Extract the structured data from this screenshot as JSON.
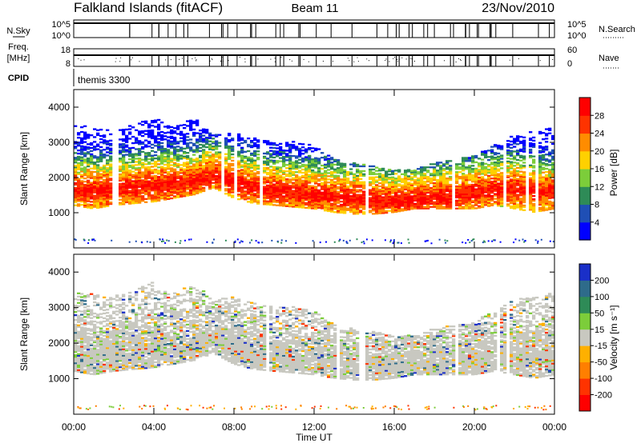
{
  "header": {
    "station": "Falkland Islands (fitACF)",
    "beam": "Beam 11",
    "date": "23/Nov/2010"
  },
  "chart_data": [
    {
      "type": "line",
      "panel": "noise",
      "left_label": "N.Sky",
      "right_label": "N.Search",
      "left_ticks": [
        "10^5",
        "10^0"
      ],
      "right_ticks": [
        "10^5",
        "10^0"
      ]
    },
    {
      "type": "line",
      "panel": "frequency",
      "left_label_lines": [
        "Freq.",
        "[MHz]"
      ],
      "right_label": "Nave",
      "left_ticks": [
        "18",
        "8"
      ],
      "right_ticks": [
        "60",
        "0"
      ]
    },
    {
      "type": "table",
      "panel": "cpid",
      "label": "CPID",
      "program": "themis 3300"
    },
    {
      "type": "heatmap",
      "panel": "power",
      "ylabel": "Slant Range [km]",
      "ylim": [
        0,
        4500
      ],
      "yticks": [
        1000,
        2000,
        3000,
        4000
      ],
      "colorbar_label": "Power [dB]",
      "colorbar_ticks": [
        "28",
        "24",
        "20",
        "16",
        "12",
        "8",
        "4"
      ],
      "colors": [
        "#0000ff",
        "#1f4fb5",
        "#2e8b57",
        "#7ccd3a",
        "#ffd000",
        "#ff8c00",
        "#ff3300",
        "#ff0000"
      ],
      "xlim": [
        0,
        24
      ],
      "edges_km": [
        [
          0,
          1200,
          3500
        ],
        [
          1,
          1100,
          3400
        ],
        [
          2,
          1200,
          3300
        ],
        [
          3,
          1250,
          3500
        ],
        [
          4,
          1300,
          3700
        ],
        [
          5,
          1400,
          3400
        ],
        [
          6,
          1500,
          3700
        ],
        [
          7,
          1700,
          3200
        ],
        [
          8,
          1400,
          3300
        ],
        [
          9,
          1250,
          3100
        ],
        [
          10,
          1200,
          3000
        ],
        [
          11,
          1150,
          3000
        ],
        [
          12,
          1100,
          2900
        ],
        [
          13,
          1000,
          2500
        ],
        [
          14,
          950,
          2400
        ],
        [
          15,
          950,
          2300
        ],
        [
          16,
          1000,
          2200
        ],
        [
          17,
          1100,
          2200
        ],
        [
          18,
          1100,
          2400
        ],
        [
          19,
          1100,
          2500
        ],
        [
          20,
          1100,
          2600
        ],
        [
          21,
          1200,
          2900
        ],
        [
          22,
          1100,
          3200
        ],
        [
          23,
          1000,
          3300
        ],
        [
          24,
          1100,
          3400
        ]
      ],
      "peak_km": [
        [
          0,
          1600
        ],
        [
          1,
          1620
        ],
        [
          2,
          1650
        ],
        [
          3,
          1700
        ],
        [
          4,
          1750
        ],
        [
          5,
          1800
        ],
        [
          6,
          1850
        ],
        [
          7,
          2050
        ],
        [
          8,
          1850
        ],
        [
          9,
          1700
        ],
        [
          10,
          1600
        ],
        [
          11,
          1550
        ],
        [
          12,
          1500
        ],
        [
          13,
          1450
        ],
        [
          14,
          1400
        ],
        [
          15,
          1350
        ],
        [
          16,
          1300
        ],
        [
          17,
          1350
        ],
        [
          18,
          1400
        ],
        [
          19,
          1450
        ],
        [
          20,
          1550
        ],
        [
          21,
          1650
        ],
        [
          22,
          1650
        ],
        [
          23,
          1600
        ],
        [
          24,
          1550
        ]
      ]
    },
    {
      "type": "heatmap",
      "panel": "velocity",
      "ylabel": "Slant Range [km]",
      "xlabel": "Time UT",
      "ylim": [
        0,
        4500
      ],
      "yticks": [
        1000,
        2000,
        3000,
        4000
      ],
      "xticks": [
        "00:00",
        "04:00",
        "08:00",
        "12:00",
        "16:00",
        "20:00",
        "00:00"
      ],
      "colorbar_label": "Velocity [m s⁻¹]",
      "colorbar_ticks": [
        "200",
        "100",
        "50",
        "15",
        "-15",
        "-50",
        "-100",
        "-200"
      ],
      "colors": [
        "#1a2fc8",
        "#2e6b8a",
        "#2e8b57",
        "#7ccd3a",
        "#c8c8c0",
        "#ffb000",
        "#ff7f00",
        "#ff3300",
        "#ff0000"
      ],
      "xlim": [
        0,
        24
      ]
    }
  ]
}
